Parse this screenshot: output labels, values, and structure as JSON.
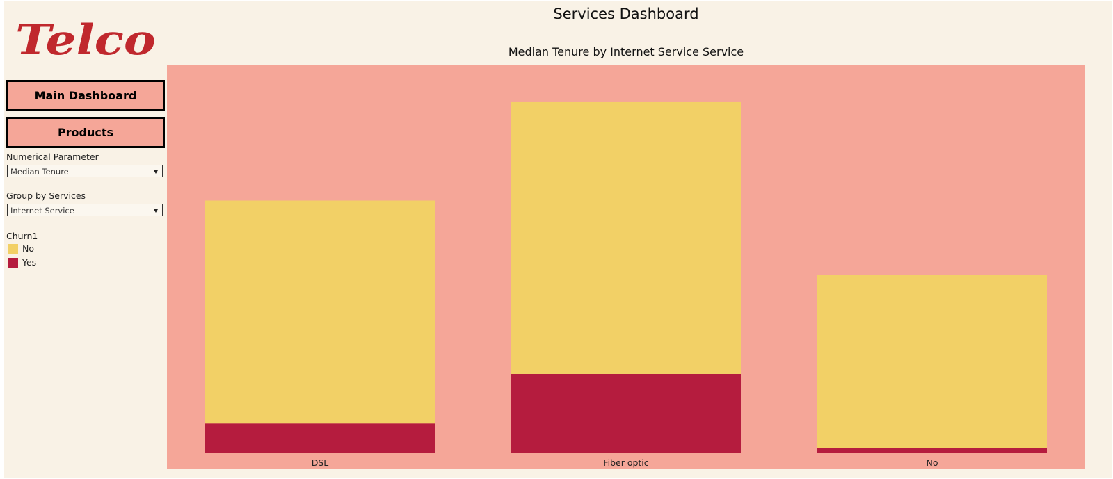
{
  "sidebar": {
    "logo_text": "Telco",
    "buttons": {
      "main": "Main Dashboard",
      "products": "Products"
    },
    "numerical_parameter": {
      "label": "Numerical Parameter",
      "value": "Median Tenure"
    },
    "group_by": {
      "label": "Group by Services",
      "value": "Internet Service"
    },
    "legend": {
      "title": "Churn1",
      "items": [
        {
          "label": "No",
          "color": "#f2d066"
        },
        {
          "label": "Yes",
          "color": "#b51c3e"
        }
      ]
    }
  },
  "header": {
    "dashboard_title": "Services Dashboard",
    "chart_title": "Median Tenure by Internet Service Service"
  },
  "colors": {
    "plot_background": "#f5a698",
    "no": "#f2d066",
    "yes": "#b51c3e",
    "logo": "#c0282d"
  },
  "chart_data": {
    "type": "bar",
    "stacked": true,
    "title": "Median Tenure by Internet Service Service",
    "xlabel": "",
    "ylabel": "",
    "categories": [
      "DSL",
      "Fiber optic",
      "No"
    ],
    "series": [
      {
        "name": "Yes",
        "values": [
          6,
          16,
          1
        ]
      },
      {
        "name": "No",
        "values": [
          45,
          55,
          35
        ]
      }
    ],
    "ylim": [
      0,
      74.5
    ],
    "grid": false,
    "legend_position": "left"
  }
}
